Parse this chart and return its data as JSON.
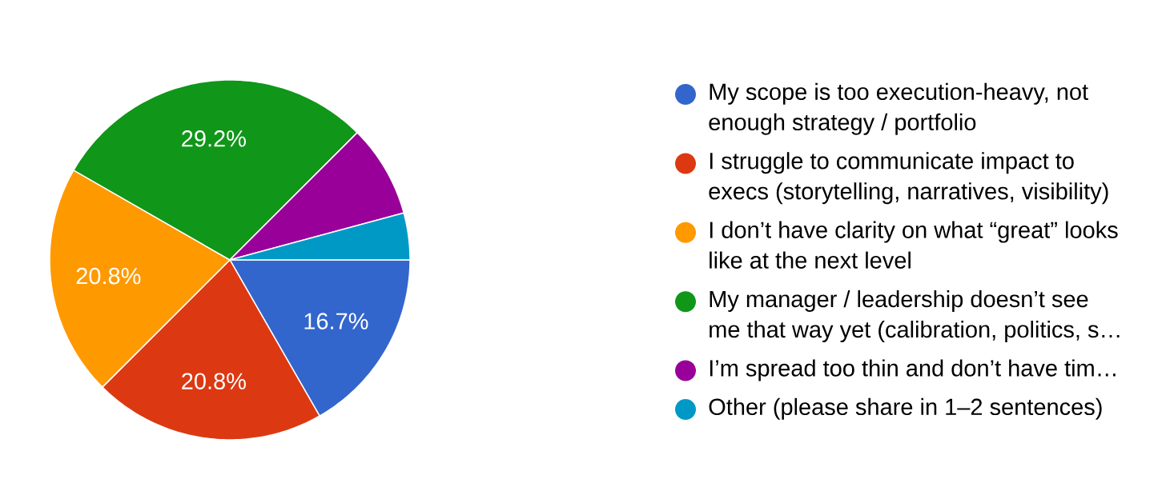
{
  "chart_data": {
    "type": "pie",
    "categories": [
      "My scope is too execution-heavy, not enough strategy / portfolio",
      "I struggle to communicate impact to execs (storytelling, narratives, visibility)",
      "I don’t have clarity on what “great” looks like at the next level",
      "My manager / leadership doesn’t see me that way yet (calibration, politics, s…",
      "I’m spread too thin and don’t have tim…",
      "Other (please share in 1–2 sentences)"
    ],
    "values": [
      16.7,
      20.8,
      20.8,
      29.2,
      8.3,
      4.2
    ],
    "colors": [
      "#3366cc",
      "#dc3912",
      "#ff9900",
      "#109618",
      "#990099",
      "#0099c6"
    ],
    "value_labels": [
      "16.7%",
      "20.8%",
      "20.8%",
      "29.2%",
      null,
      null
    ],
    "legend": "right"
  }
}
